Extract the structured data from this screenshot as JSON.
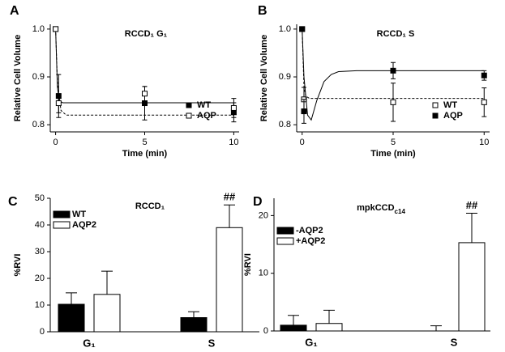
{
  "chart_data": [
    {
      "type": "scatter",
      "panel_label": "A",
      "title": "RCCD₁ G₁",
      "xlabel": "Time (min)",
      "ylabel": "Relative Cell Volume",
      "xlim": [
        -0.3,
        10.3
      ],
      "ylim": [
        0.785,
        1.01
      ],
      "xticks": [
        0,
        5,
        10
      ],
      "yticks": [
        0.8,
        0.9,
        {
          "value": 1,
          "label": "1.0"
        }
      ],
      "legend": "lower right",
      "series": [
        {
          "name": "WT",
          "marker": "filled",
          "color": "#000000",
          "x": [
            0,
            0.17,
            5,
            10
          ],
          "values": [
            1.0,
            0.86,
            0.845,
            0.826
          ],
          "errors": [
            0,
            0.045,
            0.035,
            0.02
          ],
          "fit_style": "solid",
          "fit_x": [
            0,
            0.1,
            0.2,
            0.4,
            10
          ],
          "fit_values": [
            1.0,
            0.88,
            0.85,
            0.846,
            0.846
          ]
        },
        {
          "name": "AQP",
          "marker": "open",
          "color": "#000000",
          "x": [
            0,
            0.17,
            5,
            10
          ],
          "values": [
            1.0,
            0.845,
            0.865,
            0.835
          ],
          "errors": [
            0,
            0.02,
            0.015,
            0.02
          ],
          "fit_style": "dashed",
          "fit_x": [
            0,
            0.1,
            0.3,
            0.6,
            10
          ],
          "fit_values": [
            1.0,
            0.89,
            0.83,
            0.82,
            0.82
          ]
        }
      ]
    },
    {
      "type": "scatter",
      "panel_label": "B",
      "title": "RCCD₁ S",
      "xlabel": "Time (min)",
      "ylabel": "Relative Cell Volume",
      "xlim": [
        -0.3,
        10.3
      ],
      "ylim": [
        0.785,
        1.01
      ],
      "xticks": [
        0,
        5,
        10
      ],
      "yticks": [
        0.8,
        0.9,
        {
          "value": 1,
          "label": "1.0"
        }
      ],
      "legend": "lower right",
      "series": [
        {
          "name": "WT",
          "marker": "open",
          "color": "#000000",
          "x": [
            0,
            0.1,
            5,
            10
          ],
          "values": [
            1.0,
            0.853,
            0.847,
            0.847
          ],
          "errors": [
            0,
            0.025,
            0.04,
            0.03
          ],
          "fit_style": "dashed",
          "fit_x": [
            0,
            0.1,
            0.2,
            0.4,
            10
          ],
          "fit_values": [
            1.0,
            0.88,
            0.86,
            0.855,
            0.855
          ]
        },
        {
          "name": "AQP",
          "marker": "filled",
          "color": "#000000",
          "x": [
            0,
            0.1,
            5,
            10
          ],
          "values": [
            1.0,
            0.828,
            0.913,
            0.903
          ],
          "errors": [
            0,
            0.025,
            0.017,
            0.01
          ],
          "fit_style": "solid",
          "fit_x": [
            0,
            0.1,
            0.3,
            0.5,
            0.8,
            1.2,
            1.6,
            2,
            3,
            10
          ],
          "fit_values": [
            1.0,
            0.9,
            0.82,
            0.81,
            0.85,
            0.89,
            0.905,
            0.911,
            0.913,
            0.913
          ]
        }
      ]
    },
    {
      "type": "bar",
      "panel_label": "C",
      "title": "RCCD₁",
      "ylabel": "%RVI",
      "categories": [
        "G₁",
        "S"
      ],
      "ylim": [
        0,
        50
      ],
      "yticks": [
        0,
        10,
        20,
        30,
        40,
        50
      ],
      "legend": "upper left",
      "series": [
        {
          "name": "WT",
          "color": "#000000",
          "values": [
            10.3,
            5.3
          ],
          "errors": [
            4.3,
            2.2
          ]
        },
        {
          "name": "AQP2",
          "color": "#ffffff",
          "values": [
            14,
            39
          ],
          "errors": [
            8.7,
            8.5
          ]
        }
      ],
      "annotations": [
        {
          "text": "##",
          "category": "S",
          "series": "AQP2"
        }
      ]
    },
    {
      "type": "bar",
      "panel_label": "D",
      "title": "mpkCCD",
      "title_subscript": "c14",
      "ylabel": "%RVI",
      "categories": [
        "G₁",
        "S"
      ],
      "ylim": [
        0,
        23
      ],
      "yticks": [
        0,
        10,
        20
      ],
      "legend": "upper left",
      "series": [
        {
          "name": "-AQP2",
          "color": "#000000",
          "values": [
            1.0,
            0
          ],
          "errors": [
            1.7,
            0.9
          ]
        },
        {
          "name": "+AQP2",
          "color": "#ffffff",
          "values": [
            1.3,
            15.3
          ],
          "errors": [
            2.3,
            5.1
          ]
        }
      ],
      "annotations": [
        {
          "text": "##",
          "category": "S",
          "series": "+AQP2"
        }
      ]
    }
  ]
}
